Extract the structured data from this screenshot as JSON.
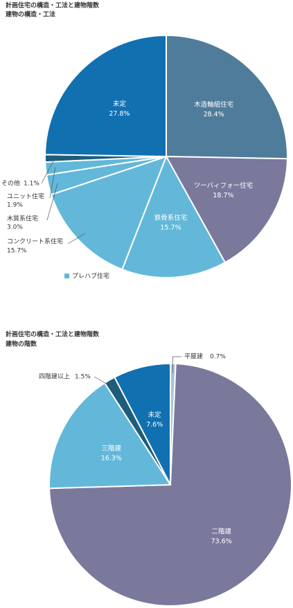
{
  "chart_data": [
    {
      "type": "pie",
      "title": "計画住宅の構造・工法と建物階数",
      "subtitle": "建物の構造・工法",
      "categories": [
        "木造軸組住宅",
        "ツーバィフォー住宅",
        "鉄骨系住宅",
        "コンクリート系住宅",
        "木質系住宅",
        "ユニット住宅",
        "その他",
        "未定"
      ],
      "values": [
        28.4,
        18.7,
        15.7,
        15.7,
        3.0,
        1.9,
        1.1,
        27.8
      ],
      "value_labels": [
        "28.4%",
        "18.7%",
        "15.7%",
        "15.7%",
        "3.0%",
        "1.9%",
        "1.1%",
        "27.8%"
      ],
      "colors": [
        "#4f7c9a",
        "#7a799c",
        "#63b8da",
        "#63b8da",
        "#63b8da",
        "#63b8da",
        "#1e5c7c",
        "#1170b0"
      ],
      "legend": [
        {
          "name": "プレハブ住宅",
          "color": "#63b8da"
        }
      ]
    },
    {
      "type": "pie",
      "title": "計画住宅の構造・工法と建物階数",
      "subtitle": "建物の階数",
      "categories": [
        "平屋建",
        "二階建",
        "三階建",
        "四階建以上",
        "未定"
      ],
      "values": [
        0.7,
        73.6,
        16.3,
        1.5,
        7.6
      ],
      "value_labels": [
        "0.7%",
        "73.6%",
        "16.3%",
        "1.5%",
        "7.6%"
      ],
      "colors": [
        "#a9c6d6",
        "#7a799c",
        "#63b8da",
        "#1e5c7c",
        "#1170b0"
      ]
    }
  ]
}
